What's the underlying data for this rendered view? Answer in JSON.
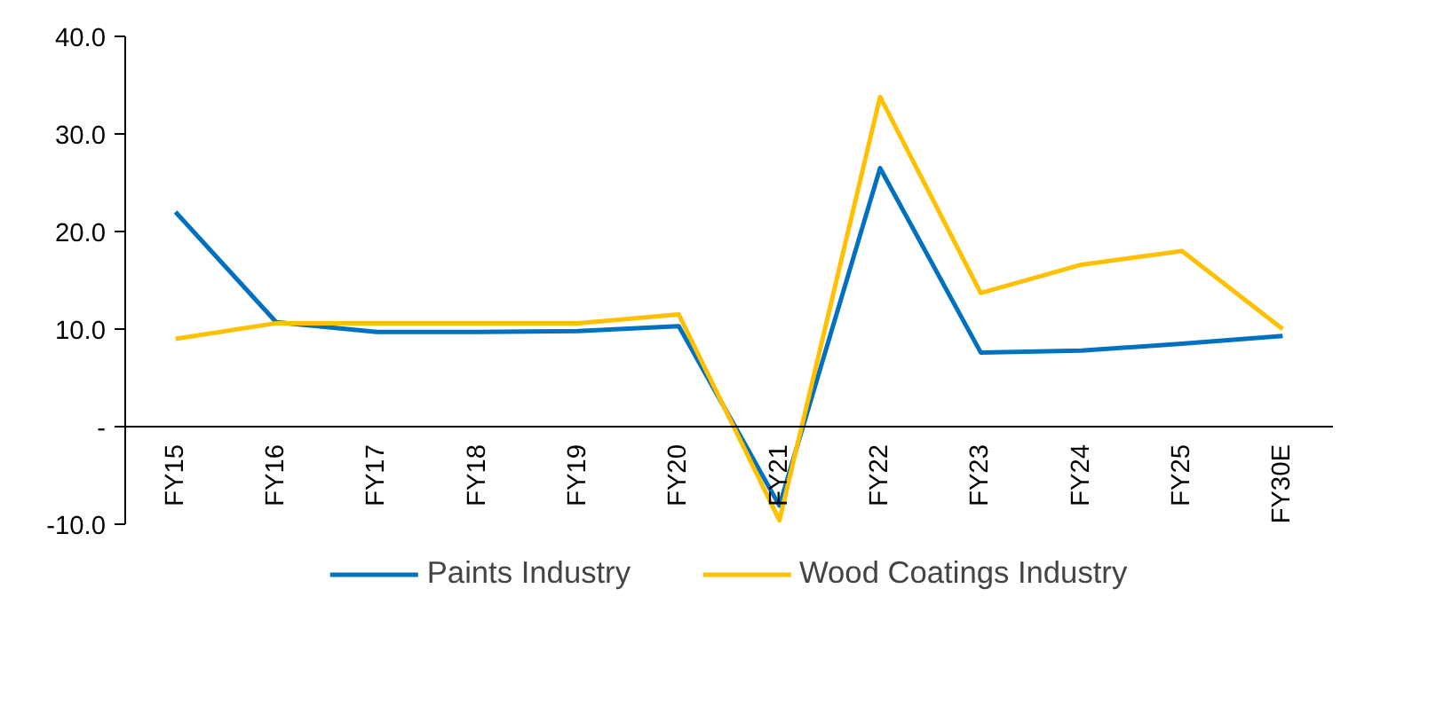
{
  "chart_data": {
    "type": "line",
    "categories": [
      "FY15",
      "FY16",
      "FY17",
      "FY18",
      "FY19",
      "FY20",
      "FY21",
      "FY22",
      "FY23",
      "FY24",
      "FY25",
      "FY30E"
    ],
    "series": [
      {
        "name": "Paints Industry",
        "color": "#0070c0",
        "values": [
          22.0,
          10.7,
          9.7,
          9.7,
          9.8,
          10.3,
          -8.1,
          26.5,
          7.6,
          7.8,
          8.5,
          9.3
        ]
      },
      {
        "name": "Wood Coatings Industry",
        "color": "#ffc000",
        "values": [
          9.0,
          10.6,
          10.6,
          10.6,
          10.6,
          11.5,
          -9.6,
          33.8,
          13.7,
          16.6,
          18.0,
          10.0
        ]
      }
    ],
    "ylim": [
      -10,
      40
    ],
    "yticks": [
      {
        "value": -10,
        "label": "-10.0"
      },
      {
        "value": 0,
        "label": "-"
      },
      {
        "value": 10,
        "label": "10.0"
      },
      {
        "value": 20,
        "label": "20.0"
      },
      {
        "value": 30,
        "label": "30.0"
      },
      {
        "value": 40,
        "label": "40.0"
      }
    ],
    "grid": false,
    "legend": "bottom",
    "marker": "none",
    "line_style": "solid"
  }
}
